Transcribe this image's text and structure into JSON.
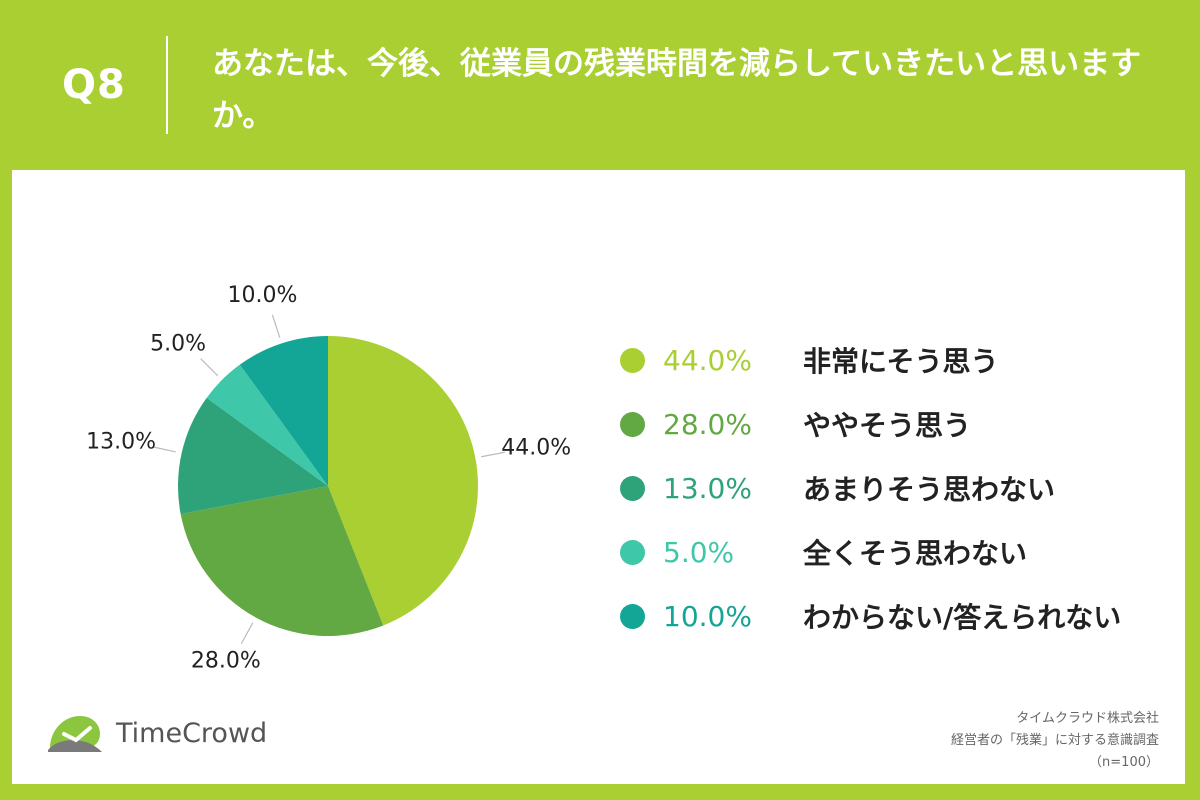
{
  "header": {
    "q_label": "Q8",
    "question": "あなたは、今後、従業員の残業時間を減らしていきたいと思いますか。"
  },
  "chart_data": {
    "type": "pie",
    "categories": [
      "非常にそう思う",
      "ややそう思う",
      "あまりそう思わない",
      "全くそう思わない",
      "わからない/答えられない"
    ],
    "values": [
      44.0,
      28.0,
      13.0,
      5.0,
      10.0
    ],
    "value_labels": [
      "44.0%",
      "28.0%",
      "13.0%",
      "5.0%",
      "10.0%"
    ],
    "colors": [
      "#a9cf33",
      "#62a843",
      "#2ea37a",
      "#3fc7a9",
      "#13a595"
    ],
    "legend_position": "right"
  },
  "legend": [
    {
      "value": "44.0%",
      "label": "非常にそう思う"
    },
    {
      "value": "28.0%",
      "label": "ややそう思う"
    },
    {
      "value": "13.0%",
      "label": "あまりそう思わない"
    },
    {
      "value": "5.0%",
      "label": "全くそう思わない"
    },
    {
      "value": "10.0%",
      "label": "わからない/答えられない"
    }
  ],
  "logo": {
    "text": "TimeCrowd"
  },
  "footer": {
    "company": "タイムクラウド株式会社",
    "survey": "経営者の「残業」に対する意識調査",
    "sample": "（n=100）"
  }
}
